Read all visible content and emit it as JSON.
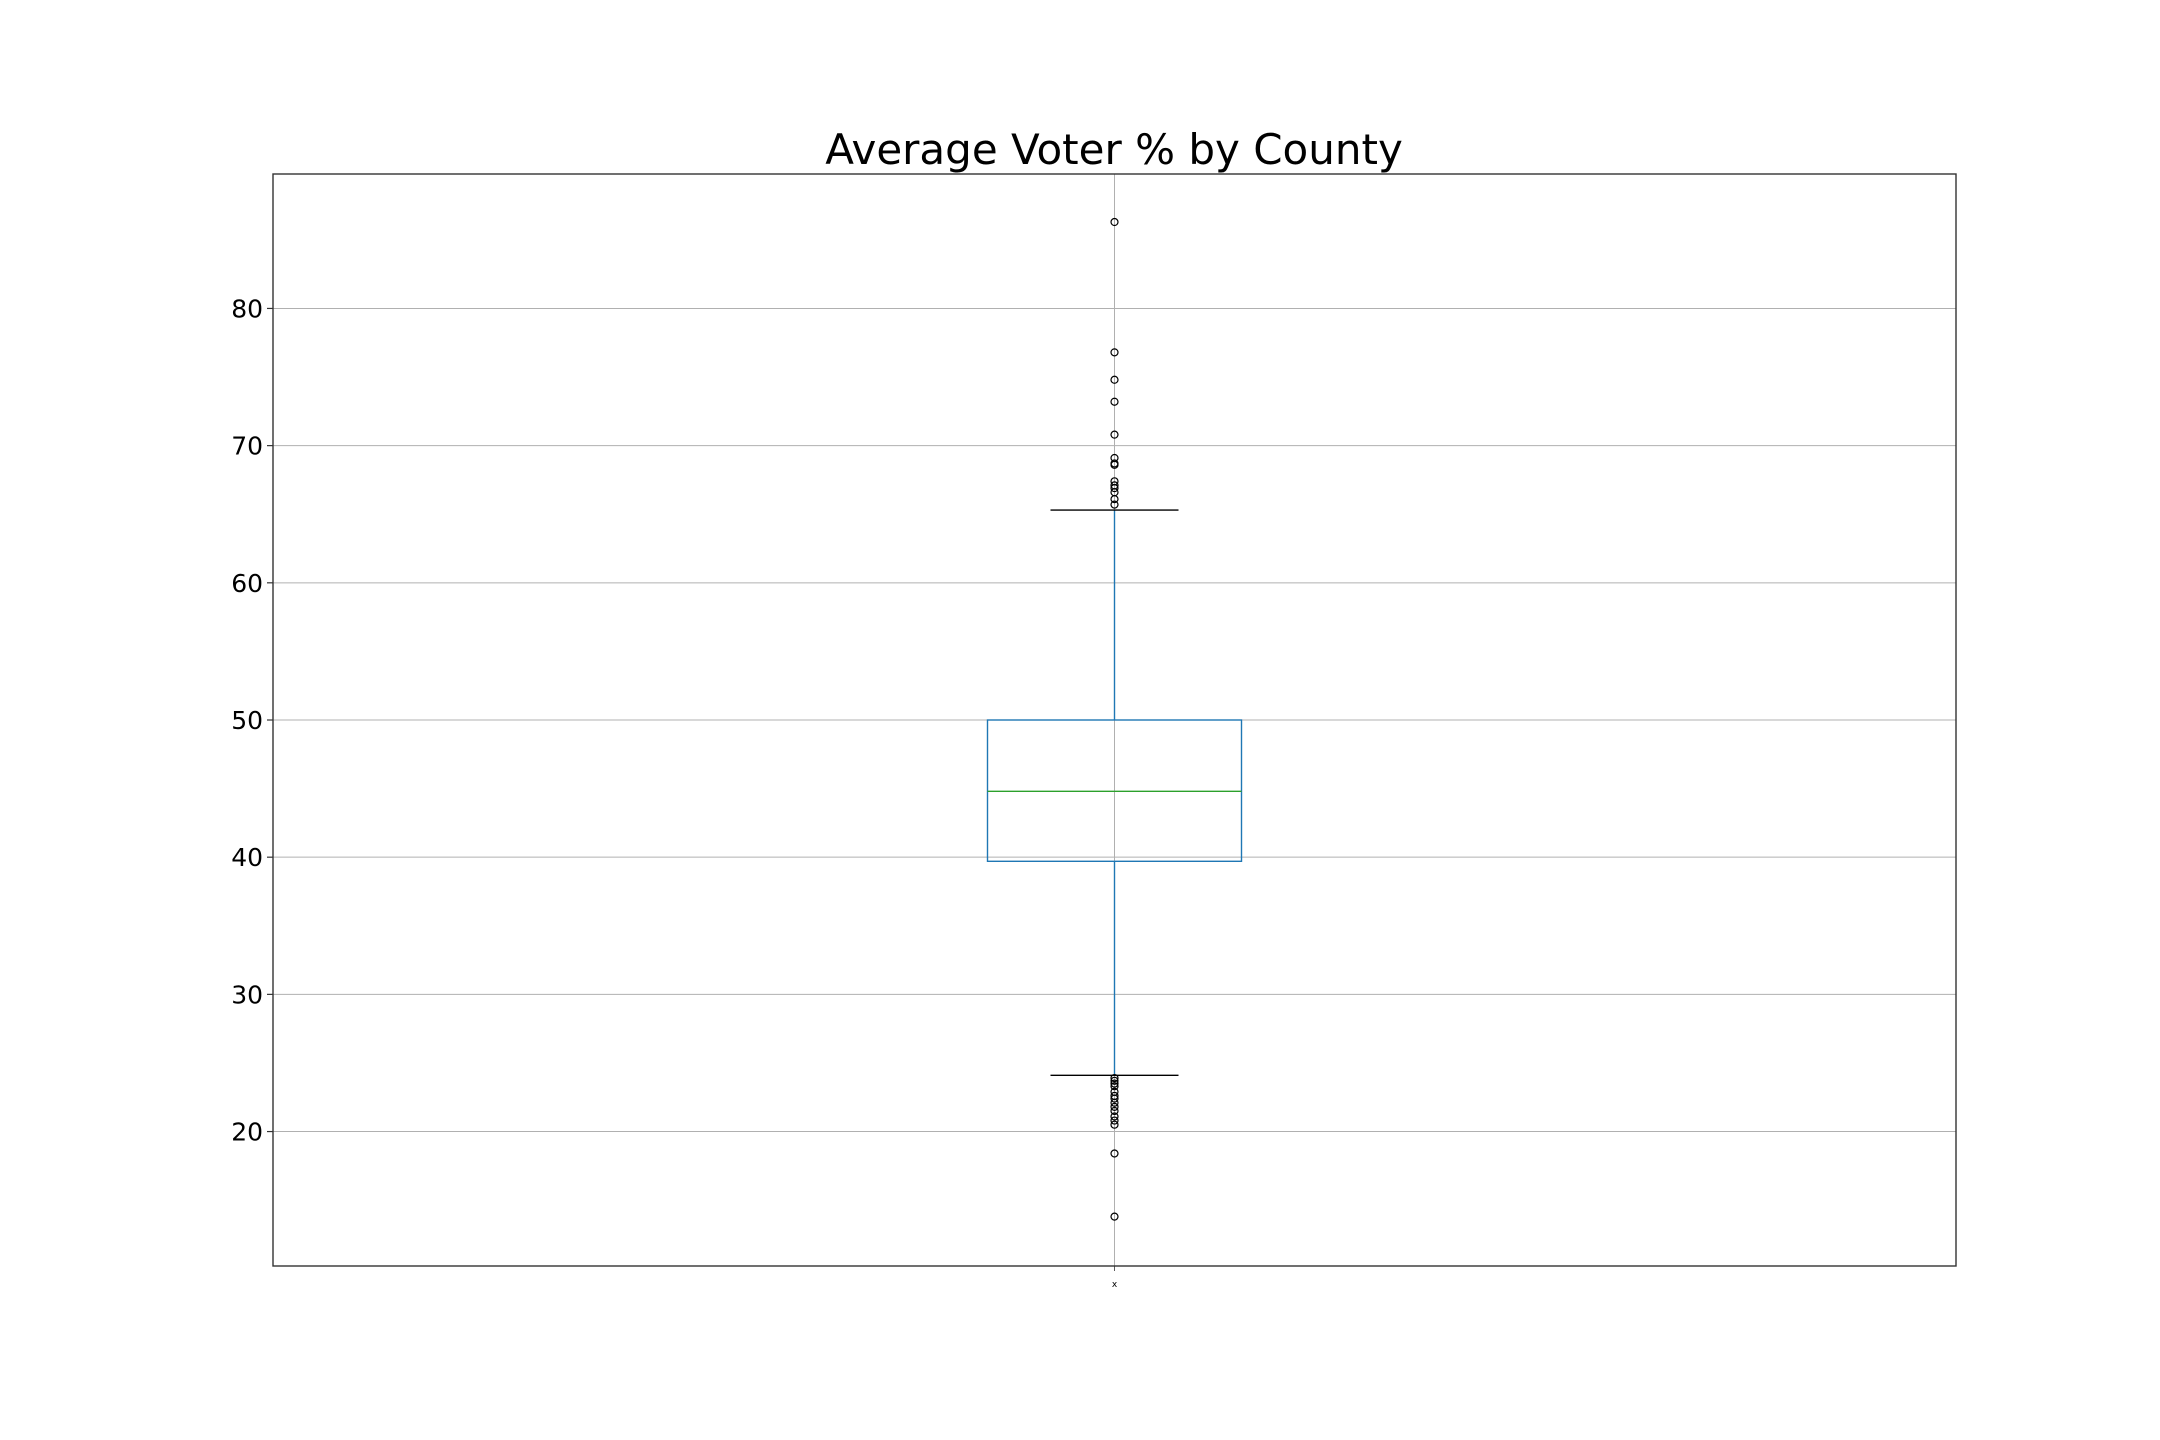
{
  "chart_data": {
    "type": "box",
    "title": "Average Voter % by County",
    "xlabel": "",
    "ylabel": "",
    "categories": [
      "x"
    ],
    "ylim": [
      10.2,
      89.8
    ],
    "yticks": [
      20,
      30,
      40,
      50,
      60,
      70,
      80
    ],
    "grid": true,
    "box": {
      "whisker_low": 24.1,
      "q1": 39.7,
      "median": 44.8,
      "q3": 50.0,
      "whisker_high": 65.3
    },
    "outliers": [
      86.3,
      76.8,
      74.8,
      73.2,
      70.8,
      69.1,
      68.7,
      68.6,
      67.4,
      67.1,
      66.9,
      66.6,
      66.1,
      65.7,
      23.9,
      23.7,
      23.5,
      23.3,
      22.9,
      22.6,
      22.4,
      22.1,
      21.8,
      21.5,
      21.1,
      20.8,
      20.5,
      18.4,
      13.8
    ],
    "colors": {
      "box": "#1f77b4",
      "median": "#2ca02c",
      "caps": "#000000",
      "outlier": "#000000",
      "grid": "#b0b0b0"
    }
  }
}
